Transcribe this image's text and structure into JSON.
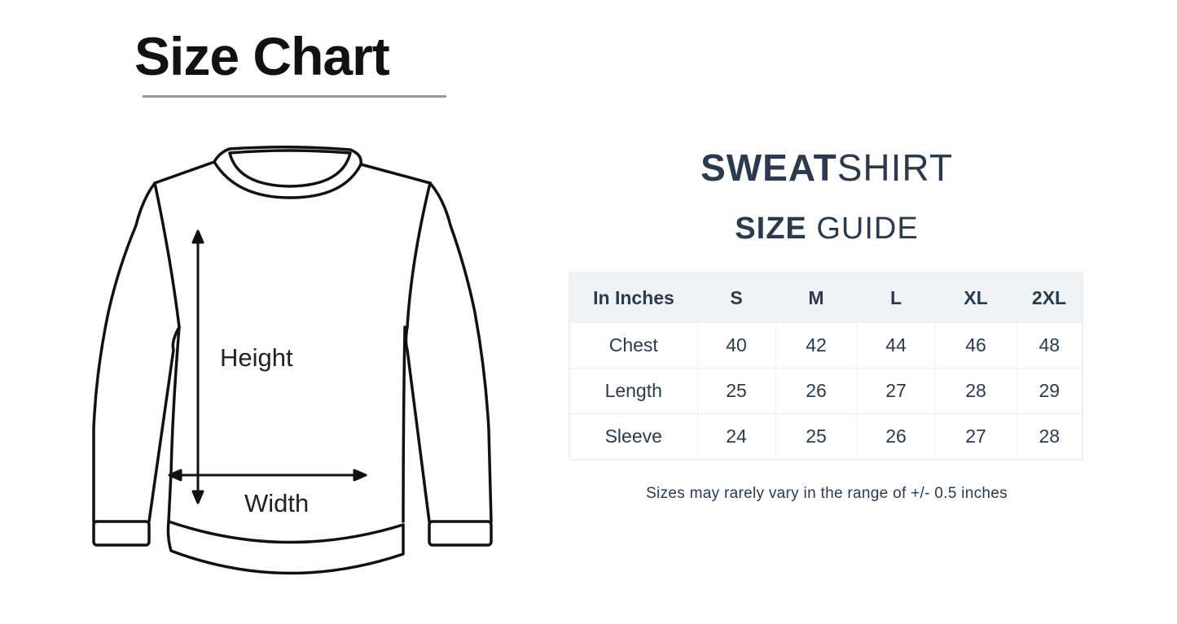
{
  "left": {
    "title": "Size Chart",
    "height_label": "Height",
    "width_label": "Width"
  },
  "right": {
    "title_bold": "SWEAT",
    "title_light": "SHIRT",
    "subtitle_bold": "SIZE",
    "subtitle_light": "GUIDE",
    "table": {
      "headers": [
        "In Inches",
        "S",
        "M",
        "L",
        "XL",
        "2XL"
      ],
      "rows": [
        [
          "Chest",
          "40",
          "42",
          "44",
          "46",
          "48"
        ],
        [
          "Length",
          "25",
          "26",
          "27",
          "28",
          "29"
        ],
        [
          "Sleeve",
          "24",
          "25",
          "26",
          "27",
          "28"
        ]
      ]
    },
    "note": "Sizes may rarely vary in the range of +/- 0.5 inches"
  },
  "colors": {
    "text": "#2b3a4e",
    "header_bg": "#f0f3f6"
  }
}
